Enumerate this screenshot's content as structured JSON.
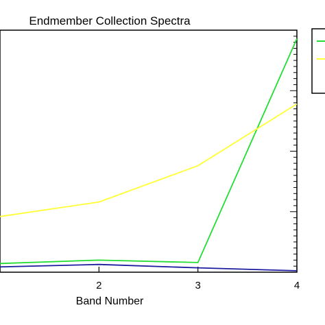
{
  "chart_data": {
    "type": "line",
    "title": "Endmember Collection Spectra",
    "xlabel": "Band Number",
    "ylabel": "",
    "x": [
      1,
      2,
      3,
      4
    ],
    "xlim": [
      1,
      4
    ],
    "xticks": [
      "2",
      "3",
      "4"
    ],
    "ylim": [
      0,
      1
    ],
    "grid": false,
    "legend_position": "top-right",
    "series": [
      {
        "color": "#22dd33",
        "values": [
          0.036,
          0.05,
          0.04,
          0.965
        ]
      },
      {
        "color": "#ffff33",
        "values": [
          0.23,
          0.29,
          0.44,
          0.695
        ]
      },
      {
        "color": "#1a1aa0",
        "values": [
          0.022,
          0.032,
          0.018,
          0.006
        ]
      }
    ],
    "legend_items": [
      {
        "color": "#22dd33"
      },
      {
        "color": "#ffff33"
      }
    ]
  }
}
